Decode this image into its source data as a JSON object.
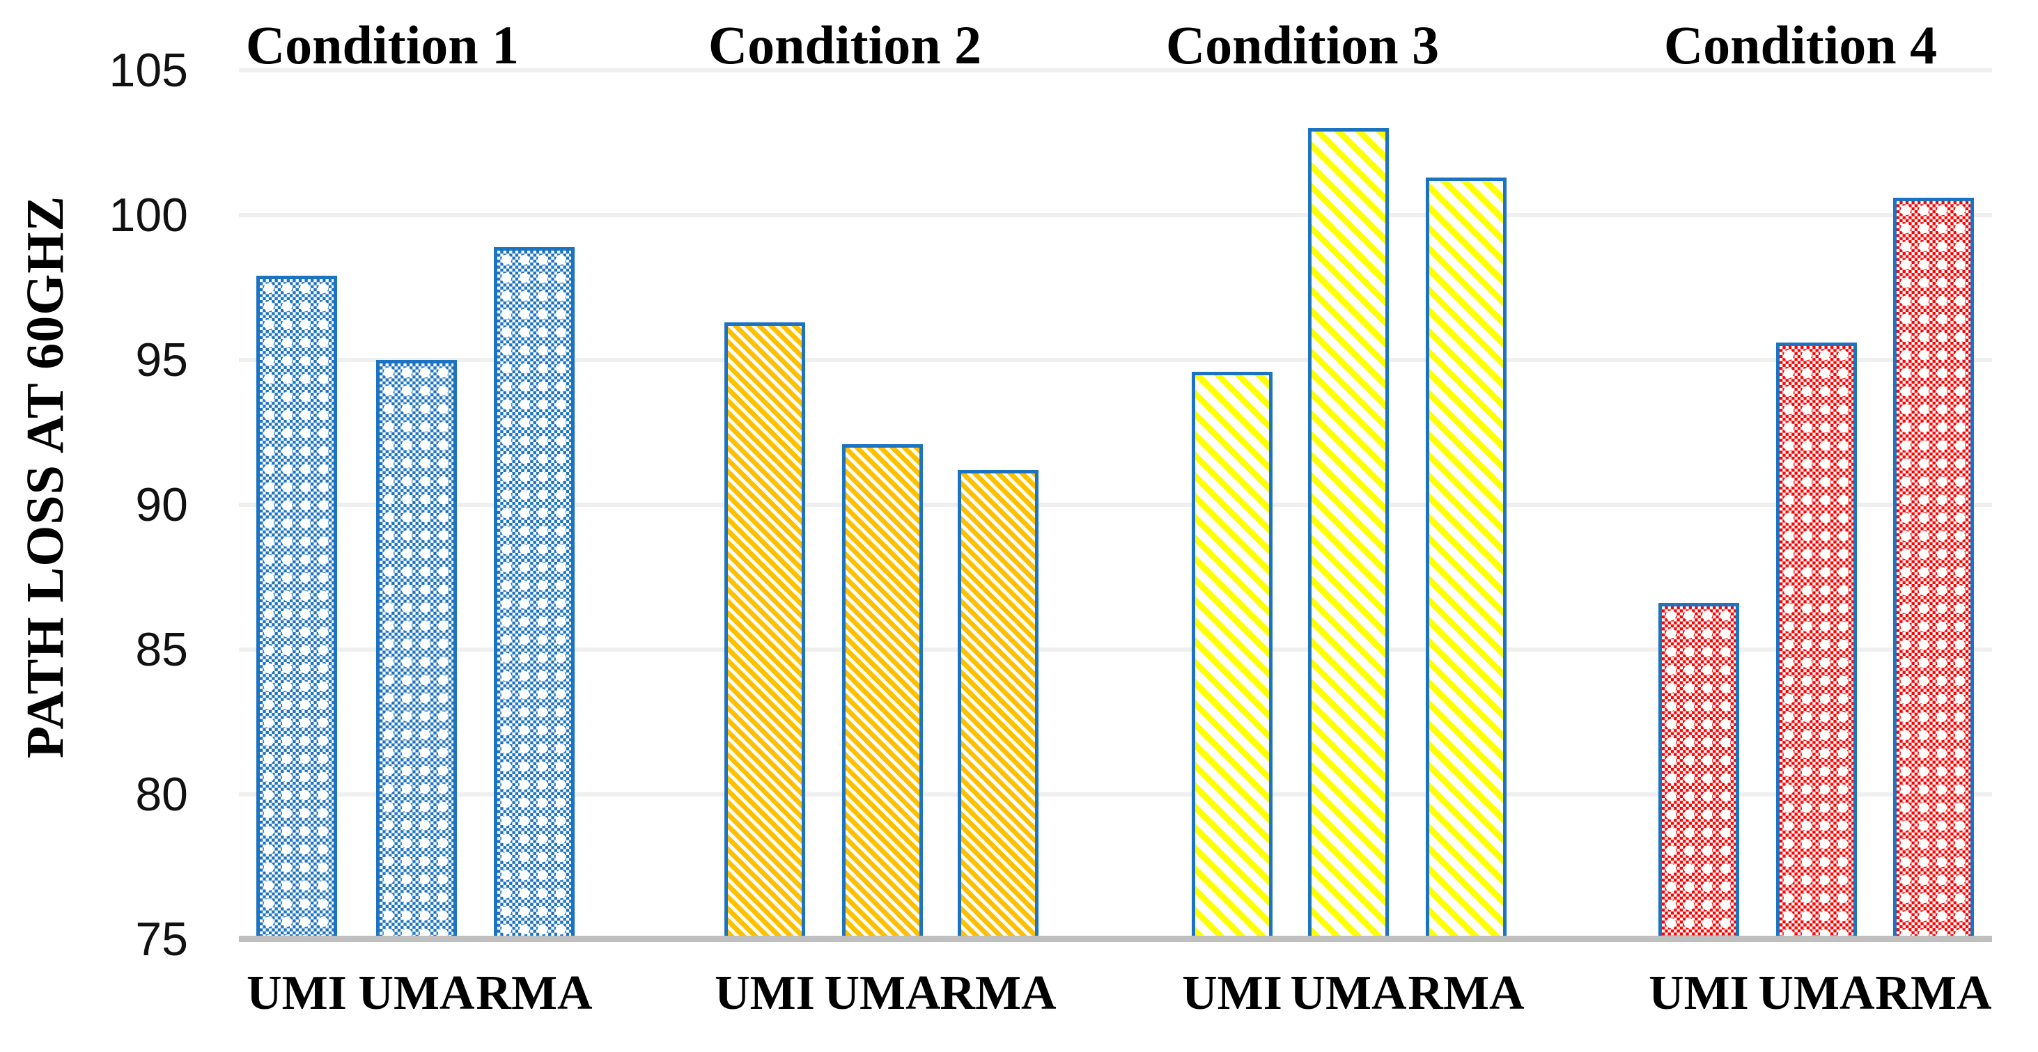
{
  "chart_data": {
    "type": "bar",
    "title": "",
    "ylabel": "PATH LOSS AT 60GHZ",
    "xlabel": "",
    "ylim": [
      75,
      105
    ],
    "yticks": [
      105,
      100,
      95,
      90,
      85,
      80,
      75
    ],
    "grid": "horizontal",
    "legend": "none",
    "bar_border_color": "#1B73C2",
    "categories_per_group": [
      "UMI",
      "UMA",
      "RMA"
    ],
    "groups": [
      {
        "label": "Condition 1",
        "pattern": "checker-dot",
        "color": "#1B73C2",
        "categories": [
          "UMI",
          "UMA",
          "RMA"
        ],
        "values": [
          97.9,
          95.0,
          98.9
        ]
      },
      {
        "label": "Condition 2",
        "pattern": "diagonal-stripe",
        "color": "#FFC000",
        "categories": [
          "UMI",
          "UMA",
          "RMA"
        ],
        "values": [
          96.3,
          92.1,
          91.2
        ]
      },
      {
        "label": "Condition 3",
        "pattern": "diagonal-stripe",
        "color": "#FFFF00",
        "categories": [
          "UMI",
          "UMA",
          "RMA"
        ],
        "values": [
          94.6,
          103.0,
          101.3
        ]
      },
      {
        "label": "Condition 4",
        "pattern": "checker-dot",
        "color": "#FF0000",
        "categories": [
          "UMI",
          "UMA",
          "RMA"
        ],
        "values": [
          86.6,
          95.6,
          100.6
        ]
      }
    ]
  },
  "colors": {
    "gridline": "#EFEFEF",
    "axis_line": "#BFBFBF",
    "text": "#000000",
    "background": "#FFFFFF"
  }
}
